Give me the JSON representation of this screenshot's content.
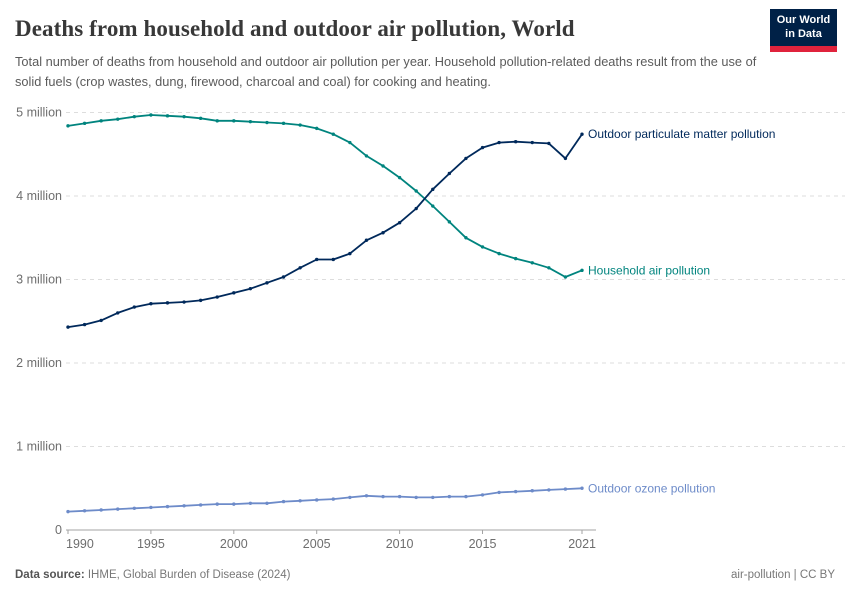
{
  "header": {
    "logo": {
      "line1": "Our World",
      "line2": "in Data",
      "bg_color": "#002147",
      "accent_color": "#E0233C"
    }
  },
  "chart_data": {
    "type": "line",
    "title": "Deaths from household and outdoor air pollution, World",
    "subtitle": "Total number of deaths from household and outdoor air pollution per year. Household pollution-related deaths result from the use of solid fuels (crop wastes, dung, firewood, charcoal and coal) for cooking and heating.",
    "units": "deaths per year (millions)",
    "xlabel": "",
    "ylabel": "",
    "ylim_millions": [
      0,
      5
    ],
    "grid": "horizontal-dashed",
    "legend_position": "end-of-line-labels",
    "x": [
      1990,
      1991,
      1992,
      1993,
      1994,
      1995,
      1996,
      1997,
      1998,
      1999,
      2000,
      2001,
      2002,
      2003,
      2004,
      2005,
      2006,
      2007,
      2008,
      2009,
      2010,
      2011,
      2012,
      2013,
      2014,
      2015,
      2016,
      2017,
      2018,
      2019,
      2020,
      2021
    ],
    "series": [
      {
        "name": "Household air pollution",
        "color": "#00847E",
        "values_millions": [
          4.84,
          4.87,
          4.9,
          4.92,
          4.95,
          4.97,
          4.96,
          4.95,
          4.93,
          4.9,
          4.9,
          4.89,
          4.88,
          4.87,
          4.85,
          4.81,
          4.74,
          4.64,
          4.48,
          4.36,
          4.22,
          4.06,
          3.88,
          3.69,
          3.5,
          3.39,
          3.31,
          3.25,
          3.2,
          3.14,
          3.03,
          3.11
        ]
      },
      {
        "name": "Outdoor particulate matter pollution",
        "color": "#00295B",
        "values_millions": [
          2.43,
          2.46,
          2.51,
          2.6,
          2.67,
          2.71,
          2.72,
          2.73,
          2.75,
          2.79,
          2.84,
          2.89,
          2.96,
          3.03,
          3.14,
          3.24,
          3.24,
          3.31,
          3.47,
          3.56,
          3.68,
          3.85,
          4.08,
          4.27,
          4.45,
          4.58,
          4.64,
          4.65,
          4.64,
          4.63,
          4.45,
          4.74
        ]
      },
      {
        "name": "Outdoor ozone pollution",
        "color": "#6D8BC9",
        "values_millions": [
          0.22,
          0.23,
          0.24,
          0.25,
          0.26,
          0.27,
          0.28,
          0.29,
          0.3,
          0.31,
          0.31,
          0.32,
          0.32,
          0.34,
          0.35,
          0.36,
          0.37,
          0.39,
          0.41,
          0.4,
          0.4,
          0.39,
          0.39,
          0.4,
          0.4,
          0.42,
          0.45,
          0.46,
          0.47,
          0.48,
          0.49,
          0.5
        ]
      }
    ],
    "yticks": [
      {
        "value": 0,
        "label": "0"
      },
      {
        "value": 1,
        "label": "1 million"
      },
      {
        "value": 2,
        "label": "2 million"
      },
      {
        "value": 3,
        "label": "3 million"
      },
      {
        "value": 4,
        "label": "4 million"
      },
      {
        "value": 5,
        "label": "5 million"
      }
    ],
    "xticks": [
      {
        "year": 1990,
        "label": "1990",
        "anchor": "start"
      },
      {
        "year": 1995,
        "label": "1995",
        "anchor": "middle"
      },
      {
        "year": 2000,
        "label": "2000",
        "anchor": "middle"
      },
      {
        "year": 2005,
        "label": "2005",
        "anchor": "middle"
      },
      {
        "year": 2010,
        "label": "2010",
        "anchor": "middle"
      },
      {
        "year": 2015,
        "label": "2015",
        "anchor": "middle"
      },
      {
        "year": 2021,
        "label": "2021",
        "anchor": "end"
      }
    ],
    "colors": {
      "grid": "#dddddd",
      "axis": "#a3a3a3",
      "tick_text": "#6e6e6e"
    }
  },
  "footer": {
    "datasource_label": "Data source:",
    "datasource_value": " IHME, Global Burden of Disease (2024)",
    "license": "air-pollution | CC BY"
  }
}
